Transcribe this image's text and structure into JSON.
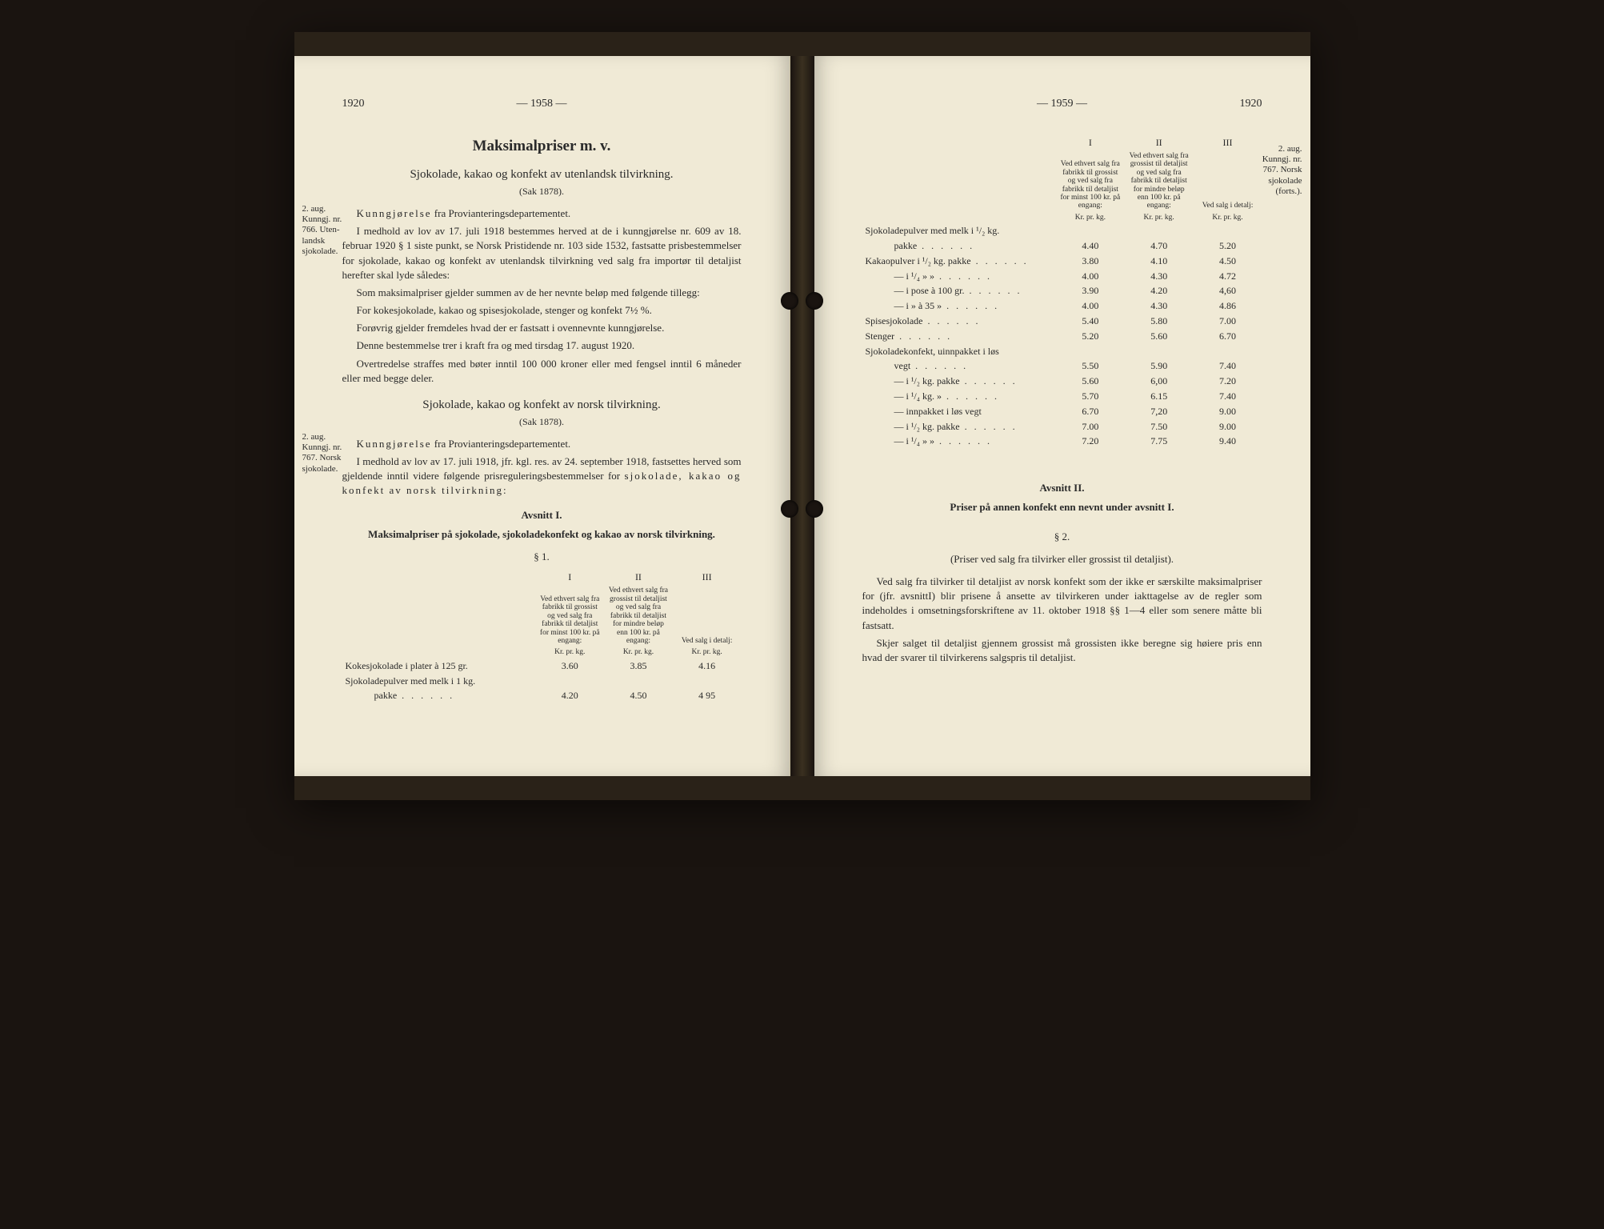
{
  "background_color": "#1a1410",
  "page_color": "#f0ead6",
  "text_color": "#2a2a2a",
  "left_page": {
    "year_left": "1920",
    "page_num_center": "— 1958 —",
    "main_title": "Maksimalpriser m. v.",
    "section1": {
      "title": "Sjokolade, kakao og konfekt av utenlandsk tilvirkning.",
      "sak": "(Sak 1878).",
      "margin_note": "2. aug. Kunngj. nr. 766. Uten­landsk sjoko­lade.",
      "para1_lead": "Kunngjørelse",
      "para1_rest": " fra Provianteringsdepartementet.",
      "para2": "I medhold av lov av 17. juli 1918 bestemmes herved at de i kunngjørelse nr. 609 av 18. februar 1920 § 1 siste punkt, se Norsk Pristidende nr. 103 side 1532, fastsatte prisbestemmelser for sjokolade, kakao og konfekt av utenlandsk tilvirkning ved salg fra importør til detaljist herefter skal lyde således:",
      "para3": "Som maksimalpriser gjelder summen av de her nevnte be­løp med følgende tillegg:",
      "para4": "For kokesjokolade, kakao og spisesjokolade, stenger og konfekt 7½ %.",
      "para5": "Forøvrig gjelder fremdeles hvad der er fastsatt i oven­nevnte kunngjørelse.",
      "para6": "Denne bestemmelse trer i kraft fra og med tirsdag 17. au­gust 1920.",
      "para7": "Overtredelse straffes med bøter inntil 100 000 kroner eller med fengsel inntil 6 måneder eller med begge deler."
    },
    "section2": {
      "title": "Sjokolade, kakao og konfekt av norsk tilvirkning.",
      "sak": "(Sak 1878).",
      "margin_note": "2. aug. Kunngj. nr. 767. Norsk sjoko­lade.",
      "para1_lead": "Kunngjørelse",
      "para1_rest": " fra Provianteringsdepartementet.",
      "para2_a": "I medhold av lov av 17. juli 1918, jfr. kgl. res. av 24. sep­tember 1918, fastsettes herved som gjeldende inntil videre føl­gende prisreguleringsbestemmelser for ",
      "para2_spaced": "sjokolade, kakao og konfekt av norsk tilvirkning:",
      "avsnitt_heading": "Avsnitt I.",
      "avsnitt_sub": "Maksimalpriser på sjokolade, sjokoladekonfekt og kakao av norsk tilvirkning.",
      "paragraph_num": "§ 1."
    },
    "table_headers": {
      "col1_roman": "I",
      "col2_roman": "II",
      "col3_roman": "III",
      "col1_desc": "Ved ethvert salg fra fabrikk til grossist og ved salg fra fabrikk til de­taljist for minst 100 kr. på engang:",
      "col2_desc": "Ved ethvert salg fra grossist til detaljist og ved salg fra fabrikk til detaljist for mindre beløp enn 100 kr. på engang:",
      "col3_desc": "Ved salg i detalj:",
      "unit": "Kr. pr. kg."
    },
    "table_rows": [
      {
        "desc": "Kokesjokolade i plater à 125 gr.",
        "c1": "3.60",
        "c2": "3.85",
        "c3": "4.16"
      },
      {
        "desc": "Sjokoladepulver med melk i 1 kg.",
        "c1": "",
        "c2": "",
        "c3": ""
      },
      {
        "desc": "pakke",
        "indent": true,
        "dots": true,
        "c1": "4.20",
        "c2": "4.50",
        "c3": "4 95"
      }
    ]
  },
  "right_page": {
    "year_right": "1920",
    "page_num_center": "— 1959 —",
    "margin_note": "2. aug. Kunngj. nr. 767. Norsk sjokolade (forts.).",
    "table_headers": {
      "col1_roman": "I",
      "col2_roman": "II",
      "col3_roman": "III",
      "col1_desc": "Ved ethvert salg fra fabrikk til grossist og ved salg fra fabrikk til de­taljist for minst 100 kr. på engang:",
      "col2_desc": "Ved ethvert salg fra grossist til detaljist og ved salg fra fabrikk til detaljist for mindre beløp enn 100 kr. på engang:",
      "col3_desc": "Ved salg i detalj:",
      "unit": "Kr. pr. kg."
    },
    "table_rows": [
      {
        "desc": "Sjokoladepulver med melk i ¹/₂ kg.",
        "c1": "",
        "c2": "",
        "c3": ""
      },
      {
        "desc": "pakke",
        "indent": true,
        "dots": true,
        "c1": "4.40",
        "c2": "4.70",
        "c3": "5.20"
      },
      {
        "desc": "Kakaopulver i ¹/₂ kg. pakke",
        "dots": true,
        "c1": "3.80",
        "c2": "4.10",
        "c3": "4.50"
      },
      {
        "desc": "—      i ¹/₄  »      »",
        "indent": true,
        "dots": true,
        "c1": "4.00",
        "c2": "4.30",
        "c3": "4.72"
      },
      {
        "desc": "—      i pose à 100 gr.",
        "indent": true,
        "dots": true,
        "c1": "3.90",
        "c2": "4.20",
        "c3": "4,60"
      },
      {
        "desc": "—      i  »  à  35  »",
        "indent": true,
        "dots": true,
        "c1": "4.00",
        "c2": "4.30",
        "c3": "4.86"
      },
      {
        "desc": "Spisesjokolade",
        "dots": true,
        "c1": "5.40",
        "c2": "5.80",
        "c3": "7.00"
      },
      {
        "desc": "Stenger",
        "dots": true,
        "c1": "5.20",
        "c2": "5.60",
        "c3": "6.70"
      },
      {
        "desc": "Sjokoladekonfekt, uinnpakket i løs",
        "c1": "",
        "c2": "",
        "c3": ""
      },
      {
        "desc": "vegt",
        "indent": true,
        "dots": true,
        "c1": "5.50",
        "c2": "5.90",
        "c3": "7.40"
      },
      {
        "desc": "—      i ¹/₂ kg. pakke",
        "indent": true,
        "dots": true,
        "c1": "5.60",
        "c2": "6,00",
        "c3": "7.20"
      },
      {
        "desc": "—      i ¹/₄ kg.    »",
        "indent": true,
        "dots": true,
        "c1": "5.70",
        "c2": "6.15",
        "c3": "7.40"
      },
      {
        "desc": "—      innpakket i løs vegt",
        "indent": true,
        "c1": "6.70",
        "c2": "7,20",
        "c3": "9.00"
      },
      {
        "desc": "—      i ¹/₂ kg. pakke",
        "indent": true,
        "dots": true,
        "c1": "7.00",
        "c2": "7.50",
        "c3": "9.00"
      },
      {
        "desc": "—      i ¹/₄   »      »",
        "indent": true,
        "dots": true,
        "c1": "7.20",
        "c2": "7.75",
        "c3": "9.40"
      }
    ],
    "section2": {
      "heading": "Avsnitt II.",
      "sub": "Priser på annen konfekt enn nevnt under avsnitt I.",
      "paragraph_num": "§ 2.",
      "parenthetical": "(Priser ved salg fra tilvirker eller grossist til detaljist).",
      "para1": "Ved salg fra tilvirker til detaljist av norsk konfekt som der ikke er særskilte maksimalpriser for (jfr. avsnittI) blir prisene å ansette av tilvirkeren under iakttagelse av de regler som indeholdes i omsetningsforskriftene av 11. oktober 1918 §§ 1—4 eller som senere måtte bli fastsatt.",
      "para2": "Skjer salget til detaljist gjennem grossist må grossisten ikke beregne sig høiere pris enn hvad der svarer til tilvirke­rens salgspris til detaljist."
    }
  }
}
